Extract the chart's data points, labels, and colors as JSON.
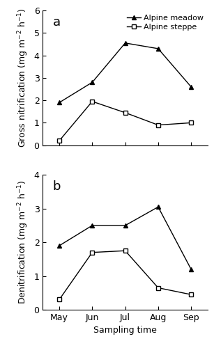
{
  "x_labels": [
    "May",
    "Jun",
    "Jul",
    "Aug",
    "Sep"
  ],
  "panel_a": {
    "title": "a",
    "ylabel": "Gross nitrification (mg m$^{-2}$ h$^{-1}$)",
    "ylim": [
      0,
      6
    ],
    "yticks": [
      0,
      1,
      2,
      3,
      4,
      5,
      6
    ],
    "meadow": [
      1.9,
      2.8,
      4.55,
      4.3,
      2.6
    ],
    "steppe": [
      0.2,
      1.95,
      1.45,
      0.9,
      1.0
    ]
  },
  "panel_b": {
    "title": "b",
    "ylabel": "Denitrification (mg m$^{-2}$ h$^{-1}$)",
    "ylim": [
      0,
      4
    ],
    "yticks": [
      0,
      1,
      2,
      3,
      4
    ],
    "meadow": [
      1.9,
      2.5,
      2.5,
      3.05,
      1.2
    ],
    "steppe": [
      0.3,
      1.7,
      1.75,
      0.65,
      0.45
    ]
  },
  "legend": {
    "meadow_label": "Alpine meadow",
    "steppe_label": "Alpine steppe"
  },
  "xlabel": "Sampling time",
  "line_color": "#000000",
  "meadow_marker": "^",
  "steppe_marker": "s",
  "meadow_markerfacecolor": "#000000",
  "steppe_markerfacecolor": "#ffffff",
  "linewidth": 1.0,
  "markersize": 5,
  "fontsize_label": 9,
  "fontsize_tick": 9,
  "fontsize_legend": 8,
  "fontsize_panel_label": 13
}
